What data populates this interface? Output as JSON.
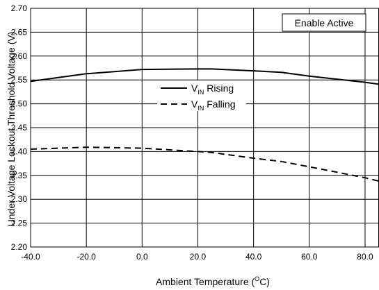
{
  "chart_data": {
    "type": "line",
    "title": "",
    "xlabel": {
      "text": "Ambient Temperature (",
      "sup": "O",
      "suffix": "C)"
    },
    "ylabel": "Under Voltage Lockout Threshold Voltage (V)",
    "xlim": [
      -40,
      85
    ],
    "ylim": [
      2.2,
      2.7
    ],
    "x_ticks": [
      -40,
      -20,
      0,
      20,
      40,
      60,
      80
    ],
    "x_tick_labels": [
      "-40.0",
      "-20.0",
      "0.0",
      "20.0",
      "40.0",
      "60.0",
      "80.0"
    ],
    "y_ticks": [
      2.2,
      2.25,
      2.3,
      2.35,
      2.4,
      2.45,
      2.5,
      2.55,
      2.6,
      2.65,
      2.7
    ],
    "y_tick_labels": [
      "2.20",
      "2.25",
      "2.30",
      "2.35",
      "2.40",
      "2.45",
      "2.50",
      "2.55",
      "2.60",
      "2.65",
      "2.70"
    ],
    "grid": true,
    "legend_position": "center",
    "annotation": "Enable Active",
    "series": [
      {
        "name_main": "V",
        "name_sub": "IN",
        "name_rest": " Rising",
        "style": "solid",
        "color": "#000000",
        "x": [
          -40,
          -20,
          0,
          20,
          25,
          40,
          50,
          60,
          80,
          85
        ],
        "y": [
          2.547,
          2.563,
          2.572,
          2.573,
          2.573,
          2.569,
          2.566,
          2.558,
          2.545,
          2.541
        ]
      },
      {
        "name_main": "V",
        "name_sub": "IN",
        "name_rest": " Falling",
        "style": "dashed",
        "color": "#000000",
        "x": [
          -40,
          -20,
          0,
          20,
          25,
          40,
          50,
          60,
          80,
          85
        ],
        "y": [
          2.405,
          2.409,
          2.407,
          2.4,
          2.398,
          2.386,
          2.379,
          2.368,
          2.345,
          2.338
        ]
      }
    ]
  }
}
